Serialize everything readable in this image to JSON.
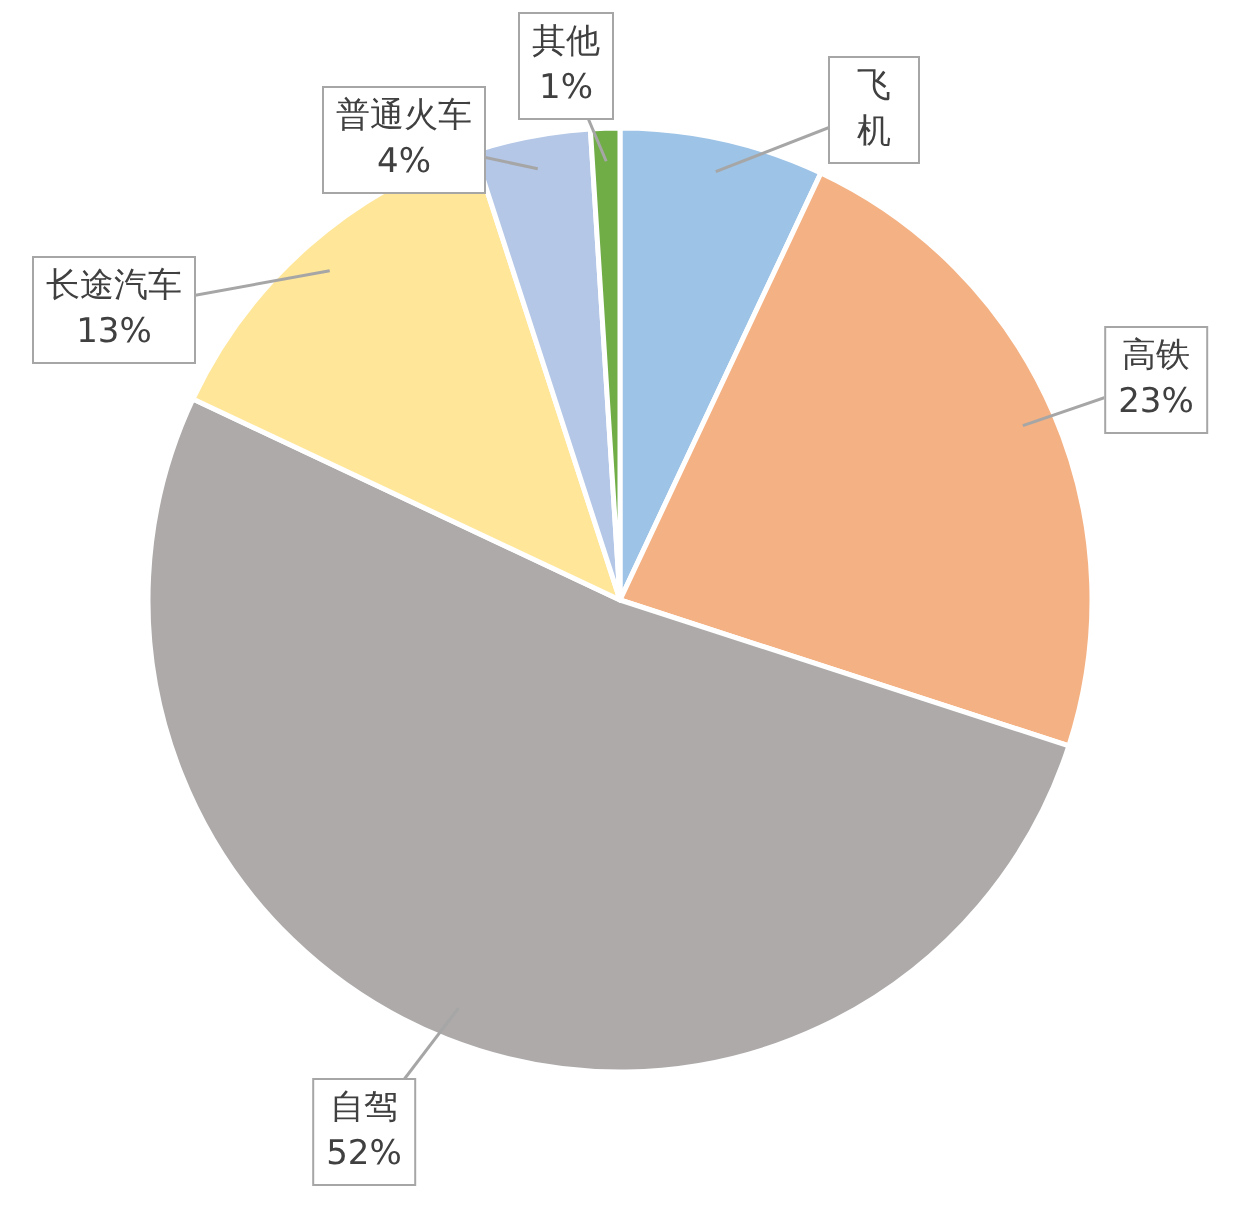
{
  "chart_data": {
    "type": "pie",
    "categories": [
      "飞机",
      "高铁",
      "自驾",
      "长途汽车",
      "普通火车",
      "其他"
    ],
    "values": [
      7,
      23,
      52,
      13,
      4,
      1
    ],
    "value_labels": [
      null,
      "23%",
      "52%",
      "13%",
      "4%",
      "1%"
    ],
    "colors": [
      "#9dc3e6",
      "#f4b183",
      "#aeaaaa",
      "#ffe699",
      "#b4c7e7",
      "#70ad47"
    ]
  }
}
